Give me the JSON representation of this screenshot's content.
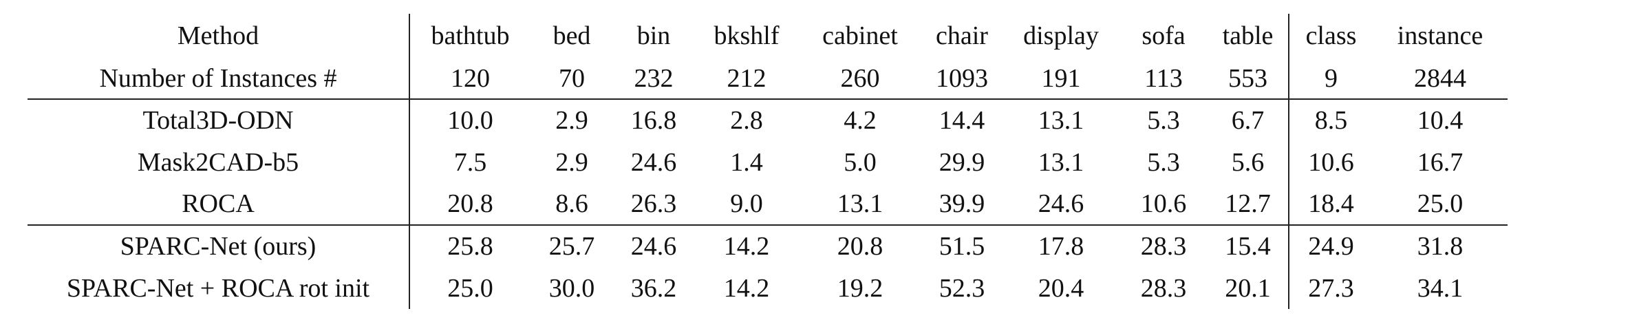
{
  "table": {
    "columns": {
      "method": "Method",
      "bathtub": "bathtub",
      "bed": "bed",
      "bin": "bin",
      "bkshlf": "bkshlf",
      "cabinet": "cabinet",
      "chair": "chair",
      "display": "display",
      "sofa": "sofa",
      "table": "table",
      "class": "class",
      "instance": "instance"
    },
    "count_row": {
      "label": "Number of Instances #",
      "bathtub": "120",
      "bed": "70",
      "bin": "232",
      "bkshlf": "212",
      "cabinet": "260",
      "chair": "1093",
      "display": "191",
      "sofa": "113",
      "table": "553",
      "class": "9",
      "instance": "2844"
    },
    "rows": [
      {
        "method": "Total3D-ODN",
        "bathtub": "10.0",
        "bed": "2.9",
        "bin": "16.8",
        "bkshlf": "2.8",
        "cabinet": "4.2",
        "chair": "14.4",
        "display": "13.1",
        "sofa": "5.3",
        "table": "6.7",
        "class": "8.5",
        "instance": "10.4"
      },
      {
        "method": "Mask2CAD-b5",
        "bathtub": "7.5",
        "bed": "2.9",
        "bin": "24.6",
        "bkshlf": "1.4",
        "cabinet": "5.0",
        "chair": "29.9",
        "display": "13.1",
        "sofa": "5.3",
        "table": "5.6",
        "class": "10.6",
        "instance": "16.7"
      },
      {
        "method": "ROCA",
        "bathtub": "20.8",
        "bed": "8.6",
        "bin": "26.3",
        "bkshlf": "9.0",
        "cabinet": "13.1",
        "chair": "39.9",
        "display": "24.6",
        "sofa": "10.6",
        "table": "12.7",
        "class": "18.4",
        "instance": "25.0"
      },
      {
        "method": "SPARC-Net (ours)",
        "bathtub": "25.8",
        "bed": "25.7",
        "bin": "24.6",
        "bkshlf": "14.2",
        "cabinet": "20.8",
        "chair": "51.5",
        "display": "17.8",
        "sofa": "28.3",
        "table": "15.4",
        "class": "24.9",
        "instance": "31.8"
      },
      {
        "method": "SPARC-Net + ROCA rot init",
        "bathtub": "25.0",
        "bed": "30.0",
        "bin": "36.2",
        "bkshlf": "14.2",
        "cabinet": "19.2",
        "chair": "52.3",
        "display": "20.4",
        "sofa": "28.3",
        "table": "20.1",
        "class": "27.3",
        "instance": "34.1"
      }
    ]
  }
}
